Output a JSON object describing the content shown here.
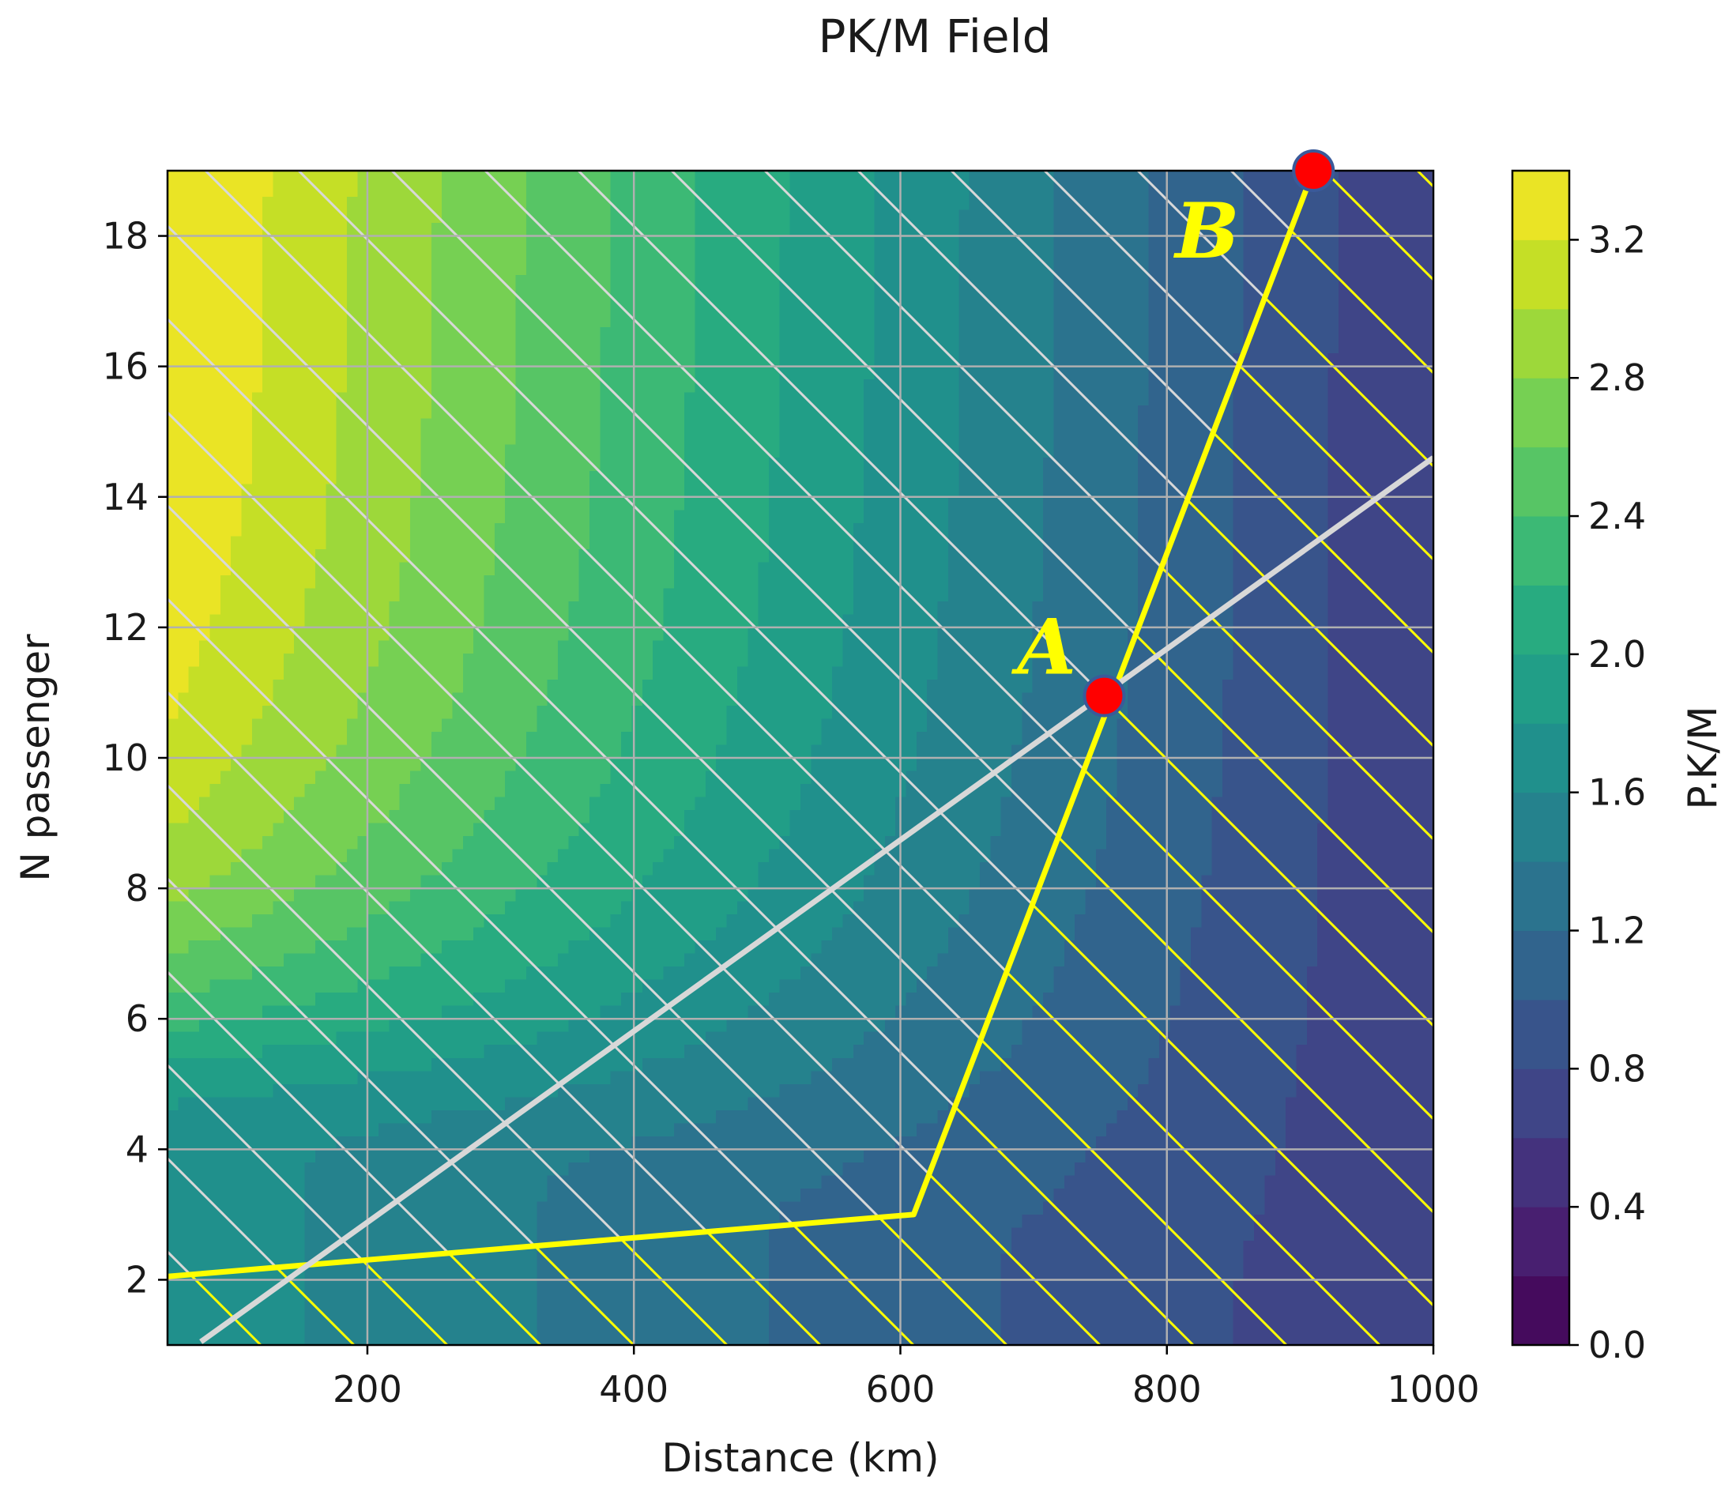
{
  "chart_data": {
    "type": "contour",
    "title": "PK/M Field",
    "xlabel": "Distance (km)",
    "ylabel": "N passenger",
    "colorbar_label": "P.K/M",
    "xlim": [
      50,
      1000
    ],
    "ylim": [
      1,
      19
    ],
    "clim": [
      0.0,
      3.4
    ],
    "colormap": "viridis",
    "grid": true,
    "x_ticks": [
      200,
      400,
      600,
      800,
      1000
    ],
    "x_tick_labels": [
      "200",
      "400",
      "600",
      "800",
      "1000"
    ],
    "y_ticks": [
      2,
      4,
      6,
      8,
      10,
      12,
      14,
      16,
      18
    ],
    "y_tick_labels": [
      "2",
      "4",
      "6",
      "8",
      "10",
      "12",
      "14",
      "16",
      "18"
    ],
    "colorbar_ticks": [
      0.0,
      0.4,
      0.8,
      1.2,
      1.6,
      2.0,
      2.4,
      2.8,
      3.2
    ],
    "colorbar_tick_labels": [
      "0.0",
      "0.4",
      "0.8",
      "1.2",
      "1.6",
      "2.0",
      "2.4",
      "2.8",
      "3.2"
    ],
    "contour_levels": [
      0.0,
      0.2,
      0.4,
      0.6,
      0.8,
      1.0,
      1.2,
      1.4,
      1.6,
      1.8,
      2.0,
      2.2,
      2.4,
      2.6,
      2.8,
      3.0,
      3.2,
      3.4
    ],
    "series": [
      {
        "name": "yellow boundary",
        "color": "#ffff00",
        "x": [
          50,
          610,
          910
        ],
        "y": [
          2.05,
          3.0,
          19.0
        ]
      },
      {
        "name": "gray line",
        "color": "#d8d8d8",
        "x": [
          75,
          1000
        ],
        "y": [
          1.05,
          14.6
        ]
      }
    ],
    "points": [
      {
        "label": "A",
        "x": 753,
        "y": 10.95,
        "color": "#ff0000"
      },
      {
        "label": "B",
        "x": 910,
        "y": 19.0,
        "color": "#ff0000"
      }
    ],
    "hatched_regions": [
      {
        "edge_color": "#d8d8d8",
        "description": "above yellow boundary"
      },
      {
        "edge_color": "#ffff00",
        "description": "below/right of yellow boundary"
      }
    ]
  }
}
